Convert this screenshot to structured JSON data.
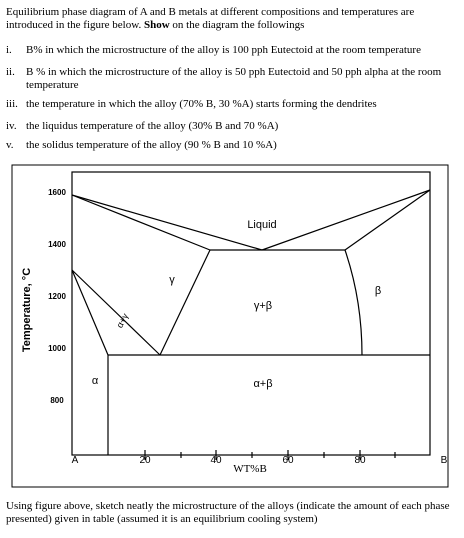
{
  "intro": {
    "text_start": "Equilibrium phase diagram of A and B metals at different compositions and temperatures are introduced in the figure below. ",
    "bold": "Show",
    "text_end": " on the diagram the followings"
  },
  "items": [
    {
      "num": "i.",
      "text": "B% in which the microstructure of the alloy is 100 pph Eutectoid at the room temperature"
    },
    {
      "num": "ii.",
      "text": "B % in which the microstructure of the alloy is 50 pph Eutectoid and 50 pph alpha at the room temperature"
    },
    {
      "num": "iii.",
      "text": "the temperature in which the alloy (70% B, 30 %A) starts forming the dendrites"
    },
    {
      "num": "iv.",
      "text": "the liquidus temperature of the alloy (30% B and 70 %A)"
    },
    {
      "num": "v.",
      "text": "the solidus temperature of the alloy (90 % B and 10 %A)"
    }
  ],
  "diagram": {
    "y_axis_label": "Temperature, °C",
    "y_tick_labels": [
      "1600",
      "1400",
      "1200",
      "1000",
      "800"
    ],
    "x_tick_labels": [
      "A",
      "20",
      "40",
      "60",
      "80",
      "B"
    ],
    "x_axis_label": "WT%B",
    "region_labels": [
      "Liquid",
      "γ",
      "β",
      "γ+β",
      "α+γ",
      "α",
      "α+β"
    ]
  },
  "footer": "Using figure above, sketch neatly the microstructure of the alloys (indicate the amount of each phase presented) given in table (assumed it is an equilibrium cooling system)"
}
